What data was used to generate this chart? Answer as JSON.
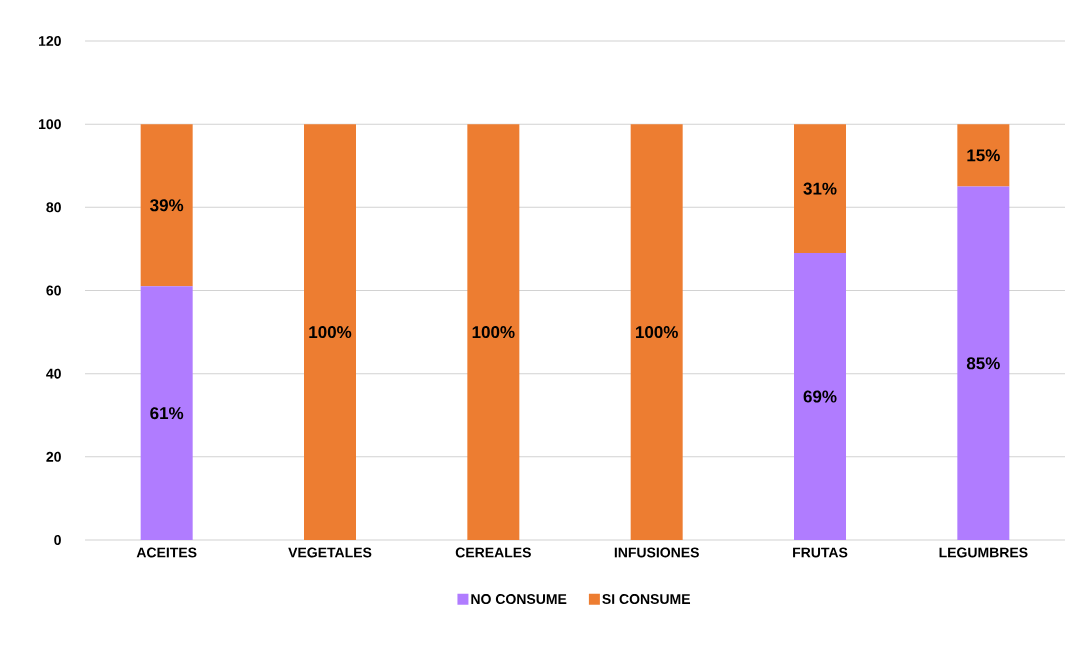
{
  "chart_data": {
    "type": "bar",
    "stacked": true,
    "categories": [
      "ACEITES",
      "VEGETALES",
      "CEREALES",
      "INFUSIONES",
      "FRUTAS",
      "LEGUMBRES"
    ],
    "series": [
      {
        "name": "NO CONSUME",
        "color": "#b07cff",
        "values": [
          61,
          0,
          0,
          0,
          69,
          85
        ],
        "value_labels": [
          "61%",
          null,
          null,
          null,
          "69%",
          "85%"
        ]
      },
      {
        "name": "SI CONSUME",
        "color": "#ed7d31",
        "values": [
          39,
          100,
          100,
          100,
          31,
          15
        ],
        "value_labels": [
          "39%",
          "100%",
          "100%",
          "100%",
          "31%",
          "15%"
        ]
      }
    ],
    "ylim": [
      0,
      120
    ],
    "yticks": [
      0,
      20,
      40,
      60,
      80,
      100,
      120
    ],
    "grid": "y",
    "legend": "bottom"
  }
}
